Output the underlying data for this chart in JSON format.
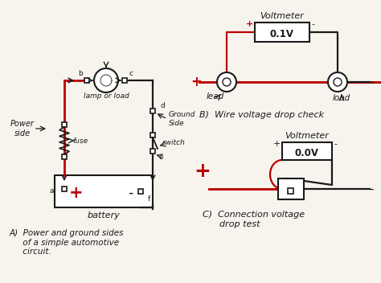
{
  "bg_color": "#f7f4ee",
  "line_color": "#1a1a1a",
  "red_color": "#bb0000",
  "title_A": "A)  Power and ground sides\n     of a simple automotive\n     circuit.",
  "title_B": "B)  Wire voltage drop check",
  "title_C": "C)  Connection voltage\n      drop test",
  "voltmeter_B": "0.1V",
  "voltmeter_C": "0.0V",
  "label_battery": "battery",
  "label_fuse": "fuse",
  "label_switch": "switch",
  "label_lamp": "lamp or load",
  "label_power": "Power\nside",
  "label_ground": "Ground\nSide",
  "label_lead_left": "lead",
  "label_lead_right": "load",
  "label_voltmeter": "Voltmeter",
  "label_a": "a",
  "label_b": "b",
  "label_c": "c",
  "label_d": "d",
  "label_e": "e",
  "label_f": "f"
}
